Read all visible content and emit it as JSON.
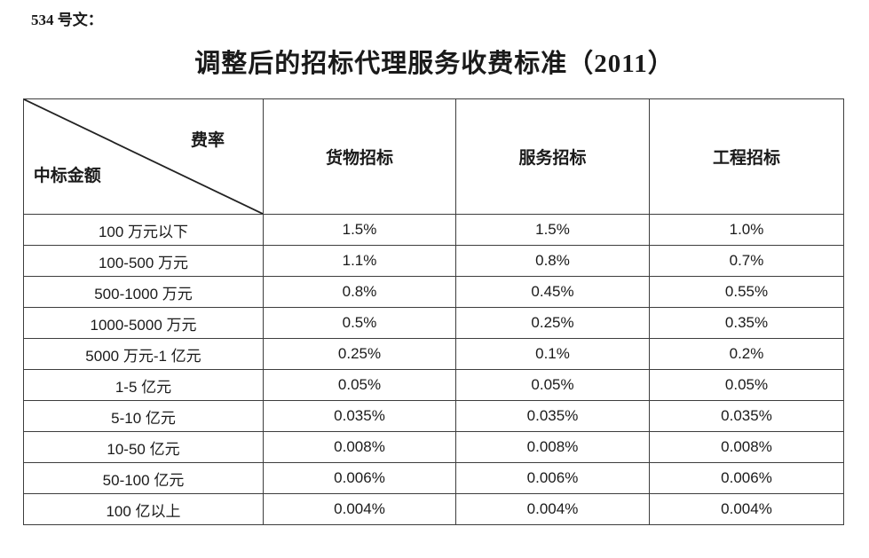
{
  "page": {
    "doc_label": "534 号文：",
    "title": "调整后的招标代理服务收费标准（2011）"
  },
  "table": {
    "corner": {
      "top_right": "费率",
      "bottom_left": "中标金额"
    },
    "columns": [
      "货物招标",
      "服务招标",
      "工程招标"
    ],
    "rows": [
      {
        "label": "100 万元以下",
        "values": [
          "1.5%",
          "1.5%",
          "1.0%"
        ]
      },
      {
        "label": "100-500 万元",
        "values": [
          "1.1%",
          "0.8%",
          "0.7%"
        ]
      },
      {
        "label": "500-1000 万元",
        "values": [
          "0.8%",
          "0.45%",
          "0.55%"
        ]
      },
      {
        "label": "1000-5000 万元",
        "values": [
          "0.5%",
          "0.25%",
          "0.35%"
        ]
      },
      {
        "label": "5000 万元-1 亿元",
        "values": [
          "0.25%",
          "0.1%",
          "0.2%"
        ]
      },
      {
        "label": "1-5 亿元",
        "values": [
          "0.05%",
          "0.05%",
          "0.05%"
        ]
      },
      {
        "label": "5-10 亿元",
        "values": [
          "0.035%",
          "0.035%",
          "0.035%"
        ]
      },
      {
        "label": "10-50 亿元",
        "values": [
          "0.008%",
          "0.008%",
          "0.008%"
        ]
      },
      {
        "label": "50-100 亿元",
        "values": [
          "0.006%",
          "0.006%",
          "0.006%"
        ]
      },
      {
        "label": "100 亿以上",
        "values": [
          "0.004%",
          "0.004%",
          "0.004%"
        ]
      }
    ]
  },
  "colors": {
    "text": "#1a1a1a",
    "border": "#3d3d3d",
    "background": "#ffffff"
  }
}
